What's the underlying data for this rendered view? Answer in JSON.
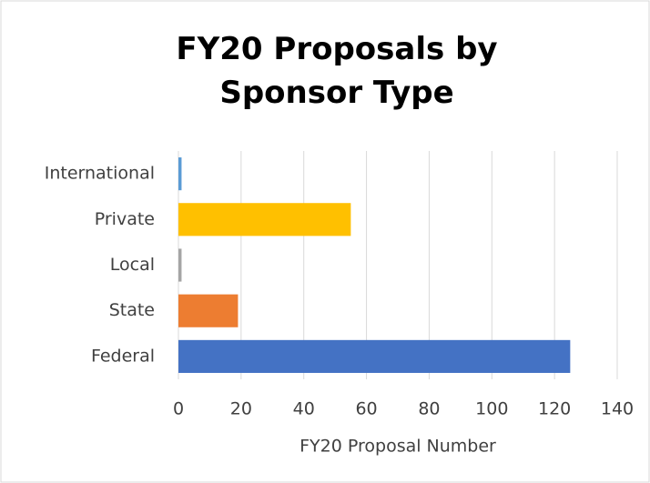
{
  "chart_data": {
    "type": "hbar",
    "title": "FY20 Proposals by Sponsor Type",
    "categories": [
      "International",
      "Private",
      "Local",
      "State",
      "Federal"
    ],
    "values": [
      1,
      55,
      1,
      19,
      125
    ],
    "colors": [
      "#5b9bd5",
      "#ffc000",
      "#a5a5a5",
      "#ed7d31",
      "#4472c4"
    ],
    "x_label": "FY20 Proposal Number",
    "xlim": [
      0,
      140
    ],
    "xticks": [
      0,
      20,
      40,
      60,
      80,
      100,
      120,
      140
    ],
    "grid": true
  }
}
